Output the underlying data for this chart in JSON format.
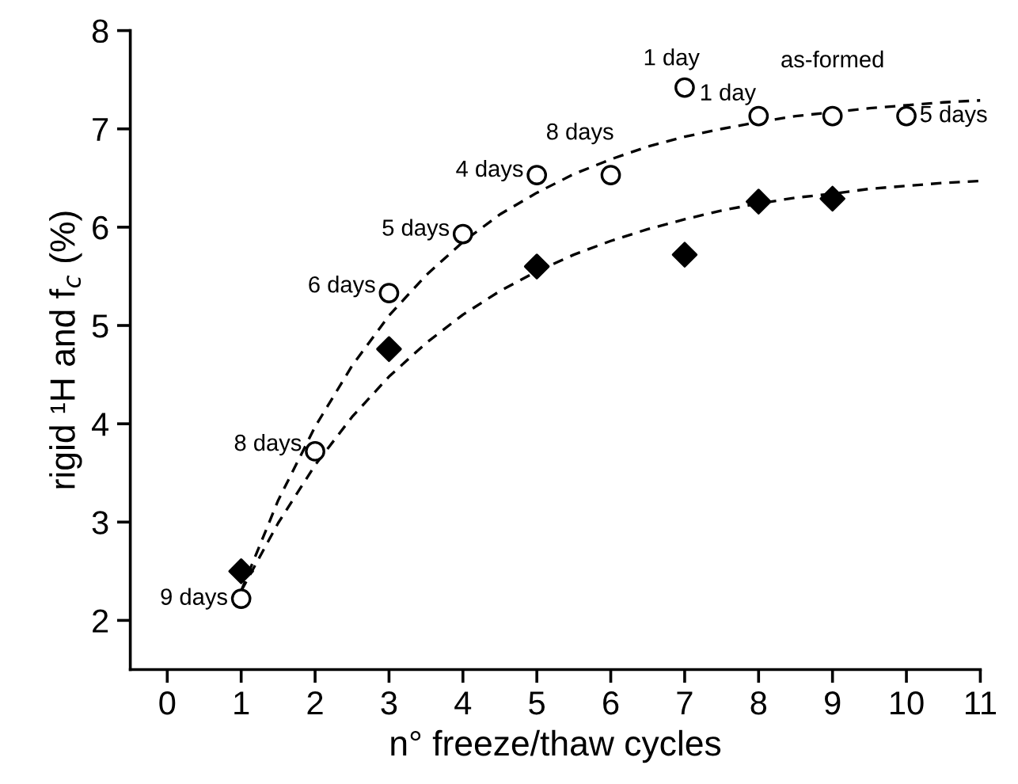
{
  "chart_data": {
    "type": "scatter",
    "xlabel": "n° freeze/thaw cycles",
    "ylabel": "rigid ¹H and f$_{c}$ (%)",
    "xlim": [
      -0.5,
      11
    ],
    "ylim": [
      1.5,
      8
    ],
    "xticks": [
      0,
      1,
      2,
      3,
      4,
      5,
      6,
      7,
      8,
      9,
      10,
      11
    ],
    "yticks": [
      2,
      3,
      4,
      5,
      6,
      7,
      8
    ],
    "grid": false,
    "legend": false,
    "series": [
      {
        "marker": "circle",
        "color": "#ffffff",
        "x": [
          1,
          2,
          3,
          4,
          5,
          6,
          7,
          8,
          9,
          10
        ],
        "values": [
          2.22,
          3.72,
          5.33,
          5.93,
          6.53,
          6.53,
          7.42,
          7.13,
          7.13,
          7.13
        ]
      },
      {
        "marker": "diamond",
        "color": "#000000",
        "x": [
          1,
          3,
          5,
          7,
          8,
          9
        ],
        "values": [
          2.5,
          4.76,
          5.6,
          5.72,
          6.26,
          6.29
        ]
      },
      {
        "type": "line",
        "line_style": "dashed",
        "marker": "none",
        "color": "#000000",
        "x": [
          1,
          1.5,
          2,
          2.5,
          3,
          3.5,
          4,
          4.5,
          5,
          5.5,
          6,
          6.5,
          7,
          7.5,
          8,
          8.5,
          9,
          9.5,
          10,
          10.5,
          11
        ],
        "values": [
          2.3,
          3.22,
          3.97,
          4.59,
          5.1,
          5.51,
          5.85,
          6.13,
          6.35,
          6.54,
          6.69,
          6.82,
          6.92,
          7.0,
          7.07,
          7.13,
          7.17,
          7.21,
          7.24,
          7.27,
          7.29
        ]
      },
      {
        "type": "line",
        "line_style": "dashed",
        "marker": "none",
        "color": "#000000",
        "x": [
          1,
          1.5,
          2,
          2.5,
          3,
          3.5,
          4,
          4.5,
          5,
          5.5,
          6,
          6.5,
          7,
          7.5,
          8,
          8.5,
          9,
          9.5,
          10,
          10.5,
          11
        ],
        "values": [
          2.3,
          2.99,
          3.58,
          4.07,
          4.48,
          4.82,
          5.11,
          5.35,
          5.55,
          5.72,
          5.86,
          5.98,
          6.08,
          6.17,
          6.24,
          6.3,
          6.34,
          6.39,
          6.42,
          6.45,
          6.47
        ]
      }
    ],
    "annotations": [
      {
        "text": "9 days",
        "x": 1,
        "y": 2.22
      },
      {
        "text": "8 days",
        "x": 2,
        "y": 3.72
      },
      {
        "text": "6 days",
        "x": 3,
        "y": 5.33
      },
      {
        "text": "5 days",
        "x": 4,
        "y": 5.93
      },
      {
        "text": "4 days",
        "x": 5,
        "y": 6.53
      },
      {
        "text": "8 days",
        "x": 6,
        "y": 6.53
      },
      {
        "text": "1 day",
        "x": 7,
        "y": 7.42
      },
      {
        "text": "1 day",
        "x": 8,
        "y": 7.13
      },
      {
        "text": "as-formed",
        "x": 9,
        "y": 7.13
      },
      {
        "text": "5 days",
        "x": 10,
        "y": 7.13
      }
    ]
  }
}
